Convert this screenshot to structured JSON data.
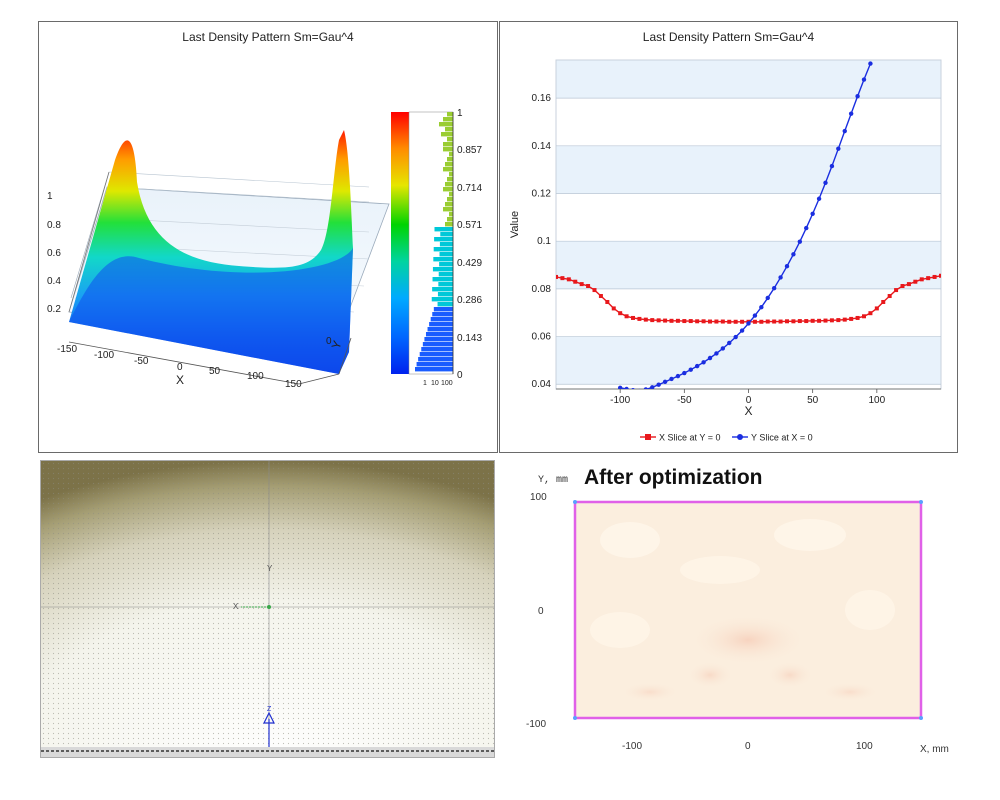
{
  "panels": {
    "surface": {
      "title": "Last Density Pattern Sm=Gau^4",
      "z_ticks": [
        "1",
        "0.8",
        "0.6",
        "0.4",
        "0.2"
      ],
      "x_ticks": [
        "-150",
        "-100",
        "-50",
        "0",
        "50",
        "100",
        "150"
      ],
      "x_label": "X",
      "y_tick": "0",
      "y_label": "Y",
      "colorbar_ticks": [
        "1",
        "0.857",
        "0.714",
        "0.571",
        "0.429",
        "0.286",
        "0.143",
        "0"
      ],
      "histogram_ticks": [
        "1",
        "10",
        "100"
      ]
    },
    "line": {
      "title": "Last Density Pattern Sm=Gau^4",
      "legend": [
        "X Slice at Y = 0",
        "Y Slice at X = 0"
      ]
    },
    "scene": {
      "axis_x": "X",
      "axis_y": "Y",
      "axis_z": "Z"
    },
    "optimization": {
      "title": "After optimization",
      "y_axis": "Y, mm",
      "x_axis": "X, mm",
      "y_ticks": [
        "100",
        "0",
        "-100"
      ],
      "x_ticks": [
        "-100",
        "0",
        "100"
      ]
    }
  },
  "colors": {
    "series_x": "#e8181c",
    "series_y": "#1a2ee0",
    "band": "#e8f2fb",
    "outline": "#e060e8"
  },
  "chart_data": [
    {
      "type": "line",
      "title": "Last Density Pattern Sm=Gau^4",
      "xlabel": "X",
      "ylabel": "Value",
      "xlim": [
        -150,
        150
      ],
      "ylim": [
        0.038,
        0.176
      ],
      "x_ticks": [
        -100,
        -50,
        0,
        50,
        100
      ],
      "y_ticks": [
        0.04,
        0.06,
        0.08,
        0.1,
        0.12,
        0.14,
        0.16
      ],
      "legend_position": "bottom",
      "series": [
        {
          "name": "X Slice at Y = 0",
          "color": "#e8181c",
          "marker": "square",
          "x": [
            -150,
            -145,
            -140,
            -135,
            -130,
            -125,
            -120,
            -115,
            -110,
            -105,
            -100,
            -95,
            -90,
            -85,
            -80,
            -75,
            -70,
            -65,
            -60,
            -55,
            -50,
            -45,
            -40,
            -35,
            -30,
            -25,
            -20,
            -15,
            -10,
            -5,
            0,
            5,
            10,
            15,
            20,
            25,
            30,
            35,
            40,
            45,
            50,
            55,
            60,
            65,
            70,
            75,
            80,
            85,
            90,
            95,
            100,
            105,
            110,
            115,
            120,
            125,
            130,
            135,
            140,
            145,
            150
          ],
          "y": [
            0.085,
            0.0845,
            0.084,
            0.083,
            0.082,
            0.0812,
            0.0795,
            0.077,
            0.0745,
            0.0718,
            0.0698,
            0.0685,
            0.0678,
            0.0674,
            0.0671,
            0.0669,
            0.0668,
            0.0667,
            0.0666,
            0.0666,
            0.0665,
            0.0665,
            0.0664,
            0.0664,
            0.0663,
            0.0663,
            0.0663,
            0.0662,
            0.0662,
            0.0662,
            0.0662,
            0.0662,
            0.0662,
            0.0663,
            0.0663,
            0.0663,
            0.0664,
            0.0664,
            0.0665,
            0.0665,
            0.0666,
            0.0666,
            0.0667,
            0.0668,
            0.0669,
            0.0671,
            0.0674,
            0.0678,
            0.0685,
            0.0698,
            0.0718,
            0.0745,
            0.077,
            0.0795,
            0.0812,
            0.082,
            0.083,
            0.084,
            0.0845,
            0.085,
            0.0855
          ]
        },
        {
          "name": "Y Slice at X = 0",
          "color": "#1a2ee0",
          "marker": "circle",
          "x": [
            -100,
            -95,
            -90,
            -85,
            -80,
            -75,
            -70,
            -65,
            -60,
            -55,
            -50,
            -45,
            -40,
            -35,
            -30,
            -25,
            -20,
            -15,
            -10,
            -5,
            0,
            5,
            10,
            15,
            20,
            25,
            30,
            35,
            40,
            45,
            50,
            55,
            60,
            65,
            70,
            75,
            80,
            85,
            90,
            95
          ],
          "y": [
            0.0385,
            0.038,
            0.0375,
            0.0372,
            0.0378,
            0.0387,
            0.0398,
            0.041,
            0.0422,
            0.0434,
            0.0447,
            0.0461,
            0.0476,
            0.0492,
            0.051,
            0.0529,
            0.055,
            0.0573,
            0.0598,
            0.0625,
            0.0655,
            0.0688,
            0.0723,
            0.0762,
            0.0803,
            0.0848,
            0.0895,
            0.0945,
            0.0998,
            0.1055,
            0.1115,
            0.1178,
            0.1245,
            0.1315,
            0.1388,
            0.1462,
            0.1535,
            0.1608,
            0.1678,
            0.1745
          ]
        }
      ]
    }
  ]
}
